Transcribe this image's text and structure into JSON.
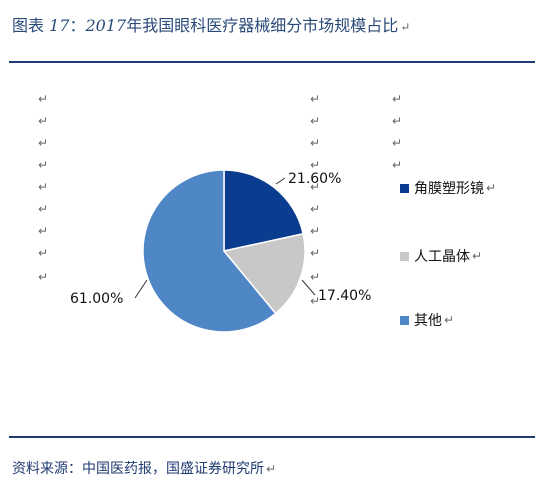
{
  "title": {
    "prefix": "图表 ",
    "figure_no": "17",
    "separator": "：",
    "year": "2017",
    "text": "年我国眼科医疗器械细分市场规模占比"
  },
  "paragraph_mark": "↵",
  "source": "资料来源：中国医药报，国盛证券研究所",
  "chart_data": {
    "type": "pie",
    "title": "",
    "start_angle_deg": 0,
    "direction": "clockwise",
    "slices": [
      {
        "name": "角膜塑形镜",
        "value": 21.6,
        "label": "21.60%",
        "color": "#0a3d8f"
      },
      {
        "name": "人工晶体",
        "value": 17.4,
        "label": "17.40%",
        "color": "#c8c8c8"
      },
      {
        "name": "其他",
        "value": 61.0,
        "label": "61.00%",
        "color": "#4f86c6"
      }
    ],
    "legend_position": "right"
  }
}
